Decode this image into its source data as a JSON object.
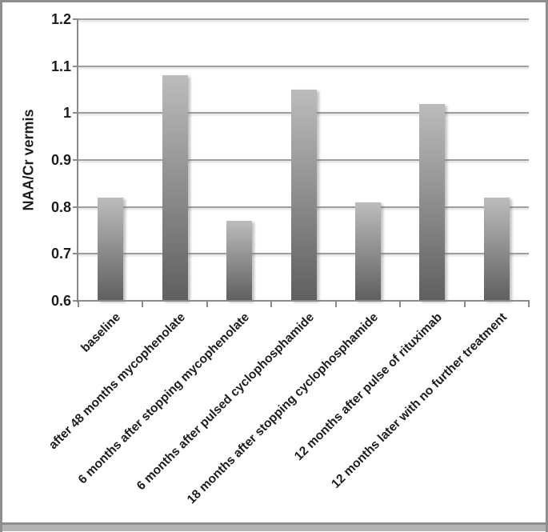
{
  "chart_data": {
    "type": "bar",
    "title": "",
    "ylabel": "NAA/Cr vermis",
    "xlabel": "",
    "categories": [
      "baseline",
      "after 48 months mycophenolate",
      "6 months after stopping mycophenolate",
      "6 months after pulsed cyclophosphamide",
      "18 months after stopping cyclophosphamide",
      "12 months after pulse of rituximab",
      "12 months later with no further treatment"
    ],
    "values": [
      0.82,
      1.08,
      0.77,
      1.05,
      0.81,
      1.02,
      0.82
    ],
    "ylim": [
      0.6,
      1.2
    ],
    "ytick_step": 0.1,
    "ytick_labels": [
      "0.6",
      "0.7",
      "0.8",
      "0.9",
      "1",
      "1.1",
      "1.2"
    ],
    "grid": true,
    "legend_position": "none",
    "colors": {
      "bar_top": "#bcbcbc",
      "bar_bottom": "#5f5f5f",
      "gridline": "#9e9e9e",
      "axis": "#8a8a8a",
      "text": "#1c1c1c",
      "frame_border": "#8f8f8f",
      "frame_band_dark": "#8f8f8f",
      "frame_band_light": "#b2b2b2"
    }
  }
}
